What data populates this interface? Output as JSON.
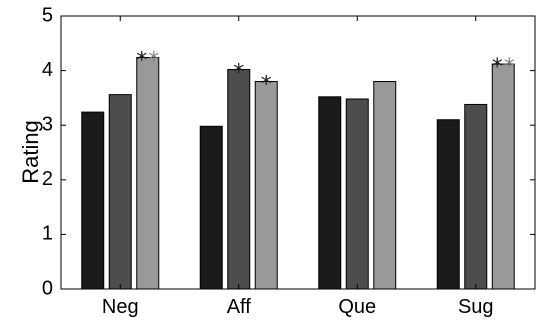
{
  "chart_data": {
    "type": "bar",
    "categories": [
      "Neg",
      "Aff",
      "Que",
      "Sug"
    ],
    "series": [
      {
        "values": [
          3.24,
          2.98,
          3.52,
          3.1
        ],
        "color": "#1a1a1a"
      },
      {
        "values": [
          3.56,
          4.02,
          3.48,
          3.38
        ],
        "color": "#4d4d4d"
      },
      {
        "values": [
          4.24,
          3.8,
          3.8,
          4.12
        ],
        "color": "#999999"
      }
    ],
    "annotations": [
      {
        "category": "Neg",
        "series": 2,
        "text": "**",
        "colors": [
          "#1a1a1a",
          "#808080"
        ]
      },
      {
        "category": "Aff",
        "series": 1,
        "text": "*",
        "colors": [
          "#1a1a1a"
        ]
      },
      {
        "category": "Aff",
        "series": 2,
        "text": "*",
        "colors": [
          "#1a1a1a"
        ]
      },
      {
        "category": "Sug",
        "series": 2,
        "text": "**",
        "colors": [
          "#1a1a1a",
          "#808080"
        ]
      }
    ],
    "title": "",
    "xlabel": "",
    "ylabel": "Rating",
    "ylim": [
      0,
      5
    ],
    "yticks": [
      "0",
      "1",
      "2",
      "3",
      "4",
      "5"
    ],
    "grid": false,
    "legend": "none"
  }
}
